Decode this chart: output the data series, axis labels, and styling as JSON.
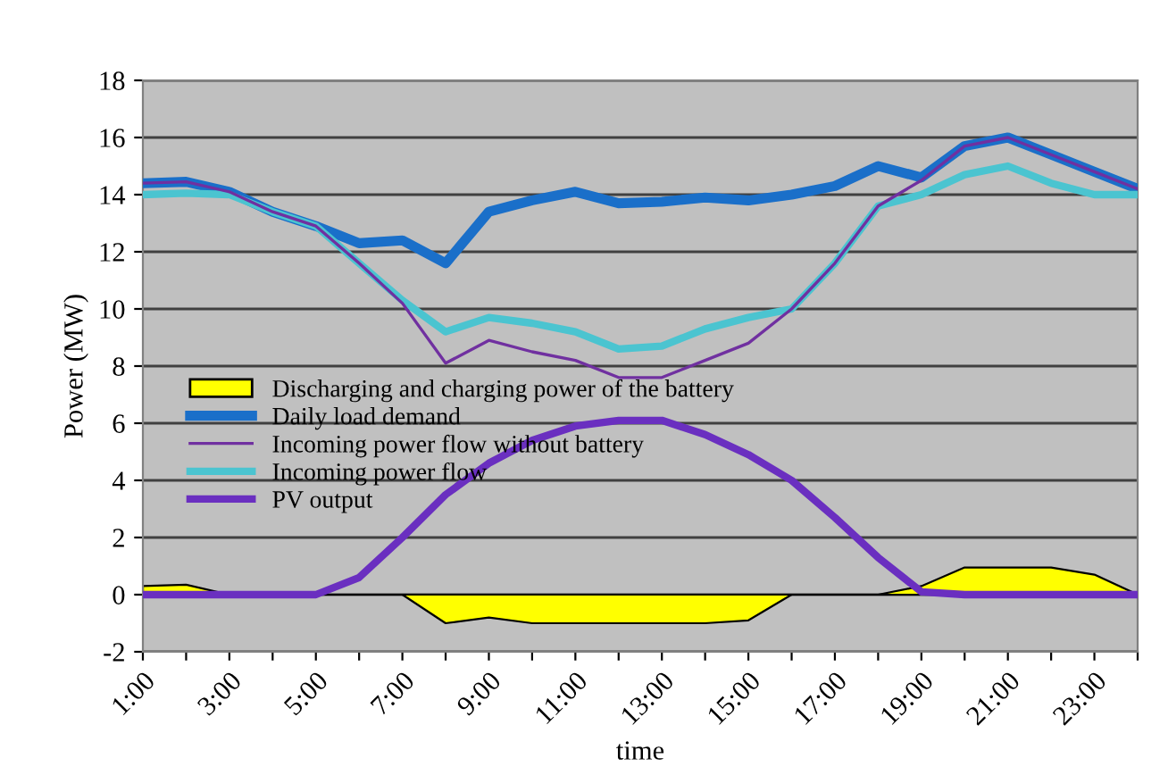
{
  "chart_data": {
    "type": "line",
    "xlabel": "time",
    "ylabel": "Power (MW)",
    "categories": [
      "1:00",
      null,
      "3:00",
      null,
      "5:00",
      null,
      "7:00",
      null,
      "9:00",
      null,
      "11:00",
      null,
      "13:00",
      null,
      "15:00",
      null,
      "17:00",
      null,
      "19:00",
      null,
      "21:00",
      null,
      "23:00",
      null
    ],
    "series": [
      {
        "name": "Discharging and charging power of the battery",
        "type": "area",
        "color": "#ffff00",
        "values": [
          0.3,
          0.35,
          0,
          0,
          0,
          0,
          0,
          -1.0,
          -0.8,
          -1.0,
          -1.0,
          -1.0,
          -1.0,
          -1.0,
          -0.9,
          0,
          0,
          0,
          0.3,
          0.95,
          0.95,
          0.95,
          0.7,
          0
        ]
      },
      {
        "name": "Daily load demand",
        "color": "#1a6fc9",
        "values": [
          14.4,
          14.45,
          14.1,
          13.4,
          12.9,
          12.3,
          12.4,
          11.6,
          13.4,
          13.8,
          14.1,
          13.7,
          13.75,
          13.9,
          13.8,
          14.0,
          14.3,
          15.0,
          14.6,
          15.7,
          16.0,
          15.4,
          14.8,
          14.2
        ]
      },
      {
        "name": "Incoming power flow without battery",
        "color": "#7030a0",
        "values": [
          14.4,
          14.45,
          14.1,
          13.4,
          12.9,
          11.6,
          10.2,
          8.1,
          8.9,
          8.5,
          8.2,
          7.6,
          7.6,
          8.2,
          8.8,
          10.0,
          11.6,
          13.6,
          14.5,
          15.7,
          16.0,
          15.4,
          14.8,
          14.2
        ]
      },
      {
        "name": "Incoming power flow",
        "color": "#4bc4d0",
        "values": [
          14.0,
          14.05,
          14.0,
          13.4,
          12.9,
          11.6,
          10.3,
          9.2,
          9.7,
          9.5,
          9.2,
          8.6,
          8.7,
          9.3,
          9.7,
          10.0,
          11.6,
          13.6,
          14.0,
          14.7,
          15.0,
          14.4,
          14.0,
          14.0
        ]
      },
      {
        "name": "PV output",
        "color": "#6a2fc0",
        "values": [
          0,
          0,
          0,
          0,
          0,
          0.6,
          2.0,
          3.5,
          4.6,
          5.4,
          5.9,
          6.1,
          6.1,
          5.6,
          4.9,
          4.0,
          2.7,
          1.3,
          0.1,
          0,
          0,
          0,
          0,
          0
        ]
      }
    ],
    "ylim": [
      -2,
      18
    ],
    "yticks": [
      -2,
      0,
      2,
      4,
      6,
      8,
      10,
      12,
      14,
      16,
      18
    ],
    "grid": "y",
    "legend": "left"
  }
}
